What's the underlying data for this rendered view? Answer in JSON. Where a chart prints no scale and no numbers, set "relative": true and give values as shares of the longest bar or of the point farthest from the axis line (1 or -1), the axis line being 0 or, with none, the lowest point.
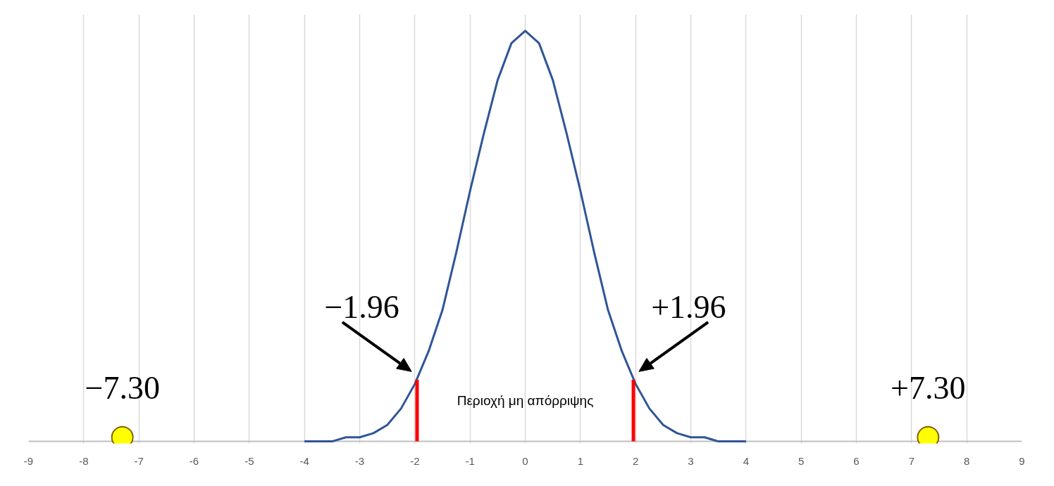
{
  "chart_data": {
    "type": "line",
    "relative": true,
    "xlim": [
      -9,
      9
    ],
    "xticks": [
      -9,
      -8,
      -7,
      -6,
      -5,
      -4,
      -3,
      -2,
      -1,
      0,
      1,
      2,
      3,
      4,
      5,
      6,
      7,
      8,
      9
    ],
    "grid": "x",
    "tick_labels": "x",
    "marker": "none",
    "line_style": "solid",
    "series": [
      {
        "color": "#2f5597",
        "x": [
          -4,
          -3.75,
          -3.5,
          -3.25,
          -3,
          -2.75,
          -2.5,
          -2.25,
          -2,
          -1.75,
          -1.5,
          -1.25,
          -1,
          -0.75,
          -0.5,
          -0.25,
          0,
          0.25,
          0.5,
          0.75,
          1,
          1.25,
          1.5,
          1.75,
          2,
          2.25,
          2.5,
          2.75,
          3,
          3.25,
          3.5,
          3.75,
          4
        ],
        "values": [
          0,
          0,
          0,
          0.01,
          0.01,
          0.02,
          0.04,
          0.08,
          0.14,
          0.22,
          0.32,
          0.46,
          0.61,
          0.75,
          0.88,
          0.97,
          1,
          0.97,
          0.88,
          0.75,
          0.61,
          0.46,
          0.32,
          0.22,
          0.14,
          0.08,
          0.04,
          0.02,
          0.01,
          0.01,
          0,
          0,
          0
        ]
      },
      {
        "type": "line",
        "color": "#ff0000",
        "x": [
          -1.96,
          -1.96
        ],
        "values": [
          0,
          0.15
        ]
      },
      {
        "type": "line",
        "color": "#ff0000",
        "x": [
          1.96,
          1.96
        ],
        "values": [
          0,
          0.15
        ]
      },
      {
        "type": "scatter",
        "marker": "circle",
        "color": "#ffff00",
        "x": [
          -7.3,
          7.3
        ],
        "values": [
          0.01,
          0.01
        ]
      }
    ],
    "annotations": [
      {
        "text": "−1.96",
        "x": -1.96,
        "y": 0.15
      },
      {
        "text": "+1.96",
        "x": 1.96,
        "y": 0.15
      },
      {
        "text": "−7.30",
        "x": -7.3,
        "y": 0.01
      },
      {
        "text": "+7.30",
        "x": 7.3,
        "y": 0.01
      },
      "Περιοχή μη απόρριψης"
    ]
  }
}
